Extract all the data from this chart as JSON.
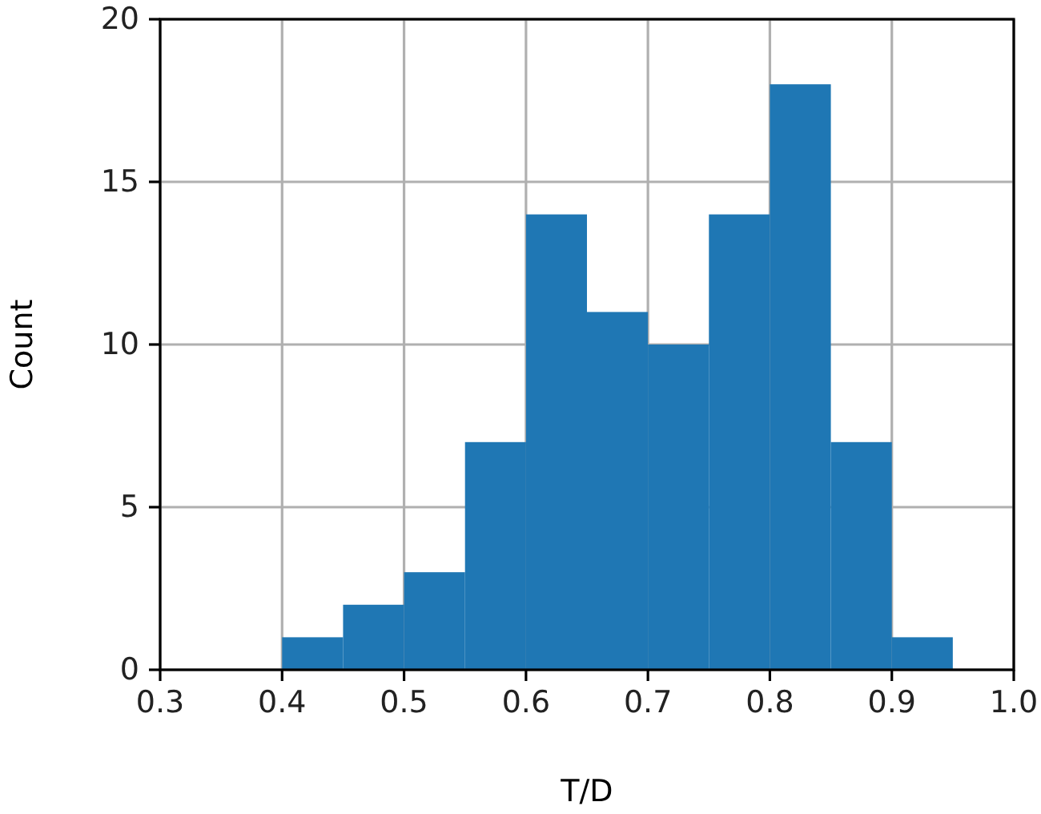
{
  "chart_data": {
    "type": "histogram",
    "xlabel": "T/D",
    "ylabel": "Count",
    "bins": [
      0.4,
      0.45,
      0.5,
      0.55,
      0.6,
      0.65,
      0.7,
      0.75,
      0.8,
      0.85,
      0.9,
      0.95
    ],
    "values": [
      1,
      2,
      3,
      7,
      14,
      11,
      10,
      14,
      18,
      7,
      1
    ],
    "color": "#1f77b4",
    "xlim": [
      0.3,
      1.0
    ],
    "xticks": [
      0.3,
      0.4,
      0.5,
      0.6,
      0.7,
      0.8,
      0.9,
      {
        "value": 1.0,
        "label": "1.0"
      }
    ],
    "ylim": [
      0,
      20
    ],
    "yticks": [
      0,
      5,
      10,
      15,
      20
    ],
    "grid": true
  }
}
